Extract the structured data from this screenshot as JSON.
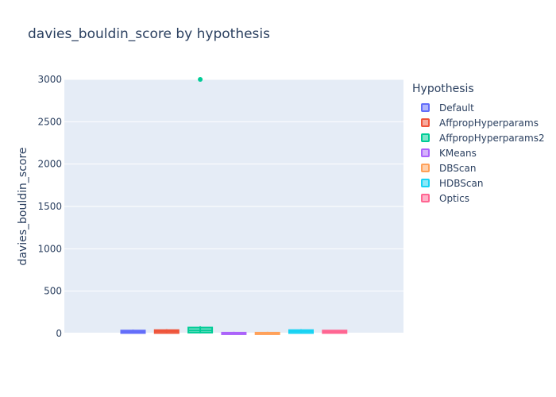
{
  "chart_data": {
    "type": "box",
    "title": "davies_bouldin_score by hypothesis",
    "xlabel": "",
    "ylabel": "davies_bouldin_score",
    "ylim": [
      0,
      3000
    ],
    "yticks": [
      0,
      500,
      1000,
      1500,
      2000,
      2500,
      3000
    ],
    "grid": true,
    "legend_title": "Hypothesis",
    "legend_position": "right",
    "series": [
      {
        "name": "Default",
        "color": "#636efa",
        "q1": 5,
        "median": 20,
        "q3": 35,
        "lower": 0,
        "upper": 45,
        "outliers": []
      },
      {
        "name": "AffpropHyperparams",
        "color": "#ef553b",
        "q1": 5,
        "median": 25,
        "q3": 40,
        "lower": 0,
        "upper": 50,
        "outliers": []
      },
      {
        "name": "AffpropHyperparams2",
        "color": "#00cc96",
        "q1": 10,
        "median": 35,
        "q3": 70,
        "lower": 0,
        "upper": 85,
        "outliers": [
          3000
        ]
      },
      {
        "name": "KMeans",
        "color": "#ab63fa",
        "q1": 0,
        "median": 5,
        "q3": 10,
        "lower": 0,
        "upper": 20,
        "outliers": []
      },
      {
        "name": "DBScan",
        "color": "#ffa15a",
        "q1": 0,
        "median": 5,
        "q3": 10,
        "lower": 0,
        "upper": 20,
        "outliers": []
      },
      {
        "name": "HDBScan",
        "color": "#19d3f3",
        "q1": 5,
        "median": 25,
        "q3": 40,
        "lower": 0,
        "upper": 50,
        "outliers": []
      },
      {
        "name": "Optics",
        "color": "#ff6692",
        "q1": 5,
        "median": 20,
        "q3": 35,
        "lower": 0,
        "upper": 40,
        "outliers": []
      }
    ]
  }
}
